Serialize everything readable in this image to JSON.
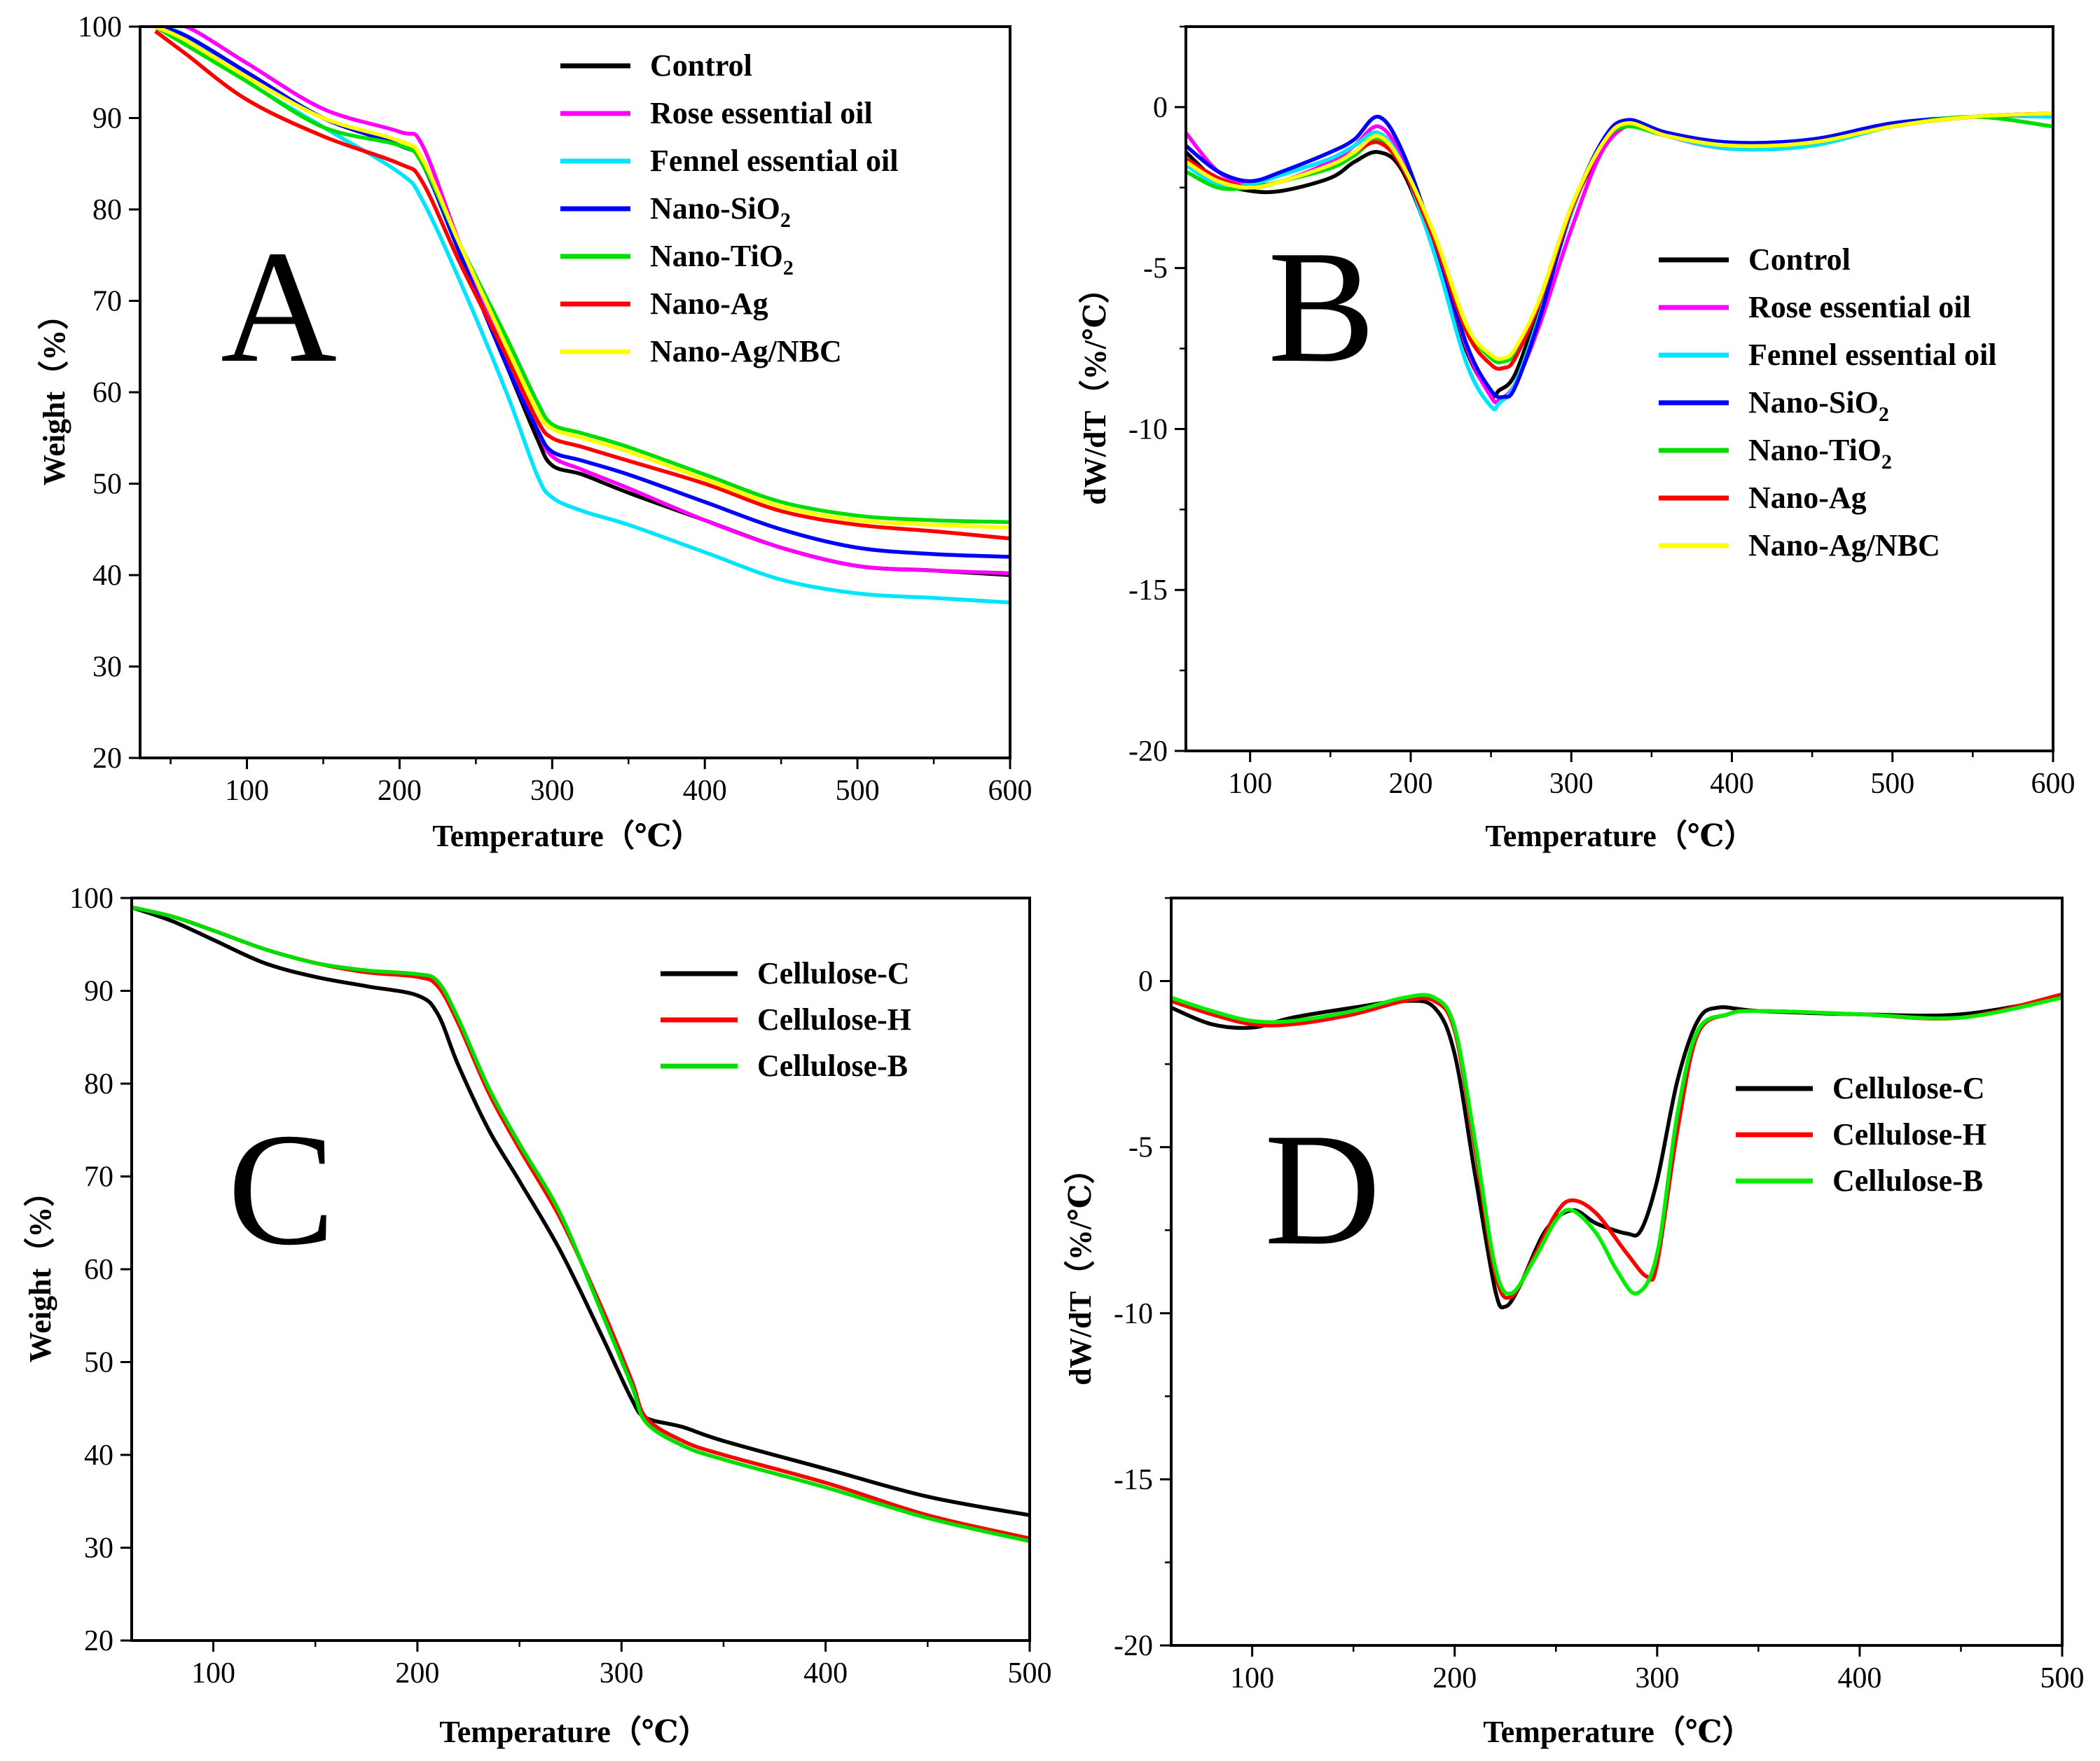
{
  "figure": {
    "panel_letters": [
      "A",
      "B",
      "C",
      "D"
    ]
  },
  "chart_data": [
    {
      "panel": "A",
      "type": "line",
      "xlabel": "Temperature（℃）",
      "ylabel": "Weight（%）",
      "xlim": [
        30,
        600
      ],
      "ylim": [
        20,
        100
      ],
      "xticks": [
        100,
        200,
        300,
        400,
        500,
        600
      ],
      "yticks": [
        20,
        30,
        40,
        50,
        60,
        70,
        80,
        90,
        100
      ],
      "legend": {
        "position": "top-right"
      },
      "series": [
        {
          "name": "Control",
          "color": "#000000",
          "x": [
            40,
            60,
            100,
            150,
            200,
            215,
            240,
            270,
            290,
            300,
            320,
            350,
            400,
            450,
            500,
            550,
            600
          ],
          "y": [
            100,
            99,
            95,
            90,
            87,
            85,
            75,
            63,
            55,
            52,
            51,
            49,
            46,
            43,
            41,
            40.5,
            40
          ]
        },
        {
          "name": "Rose essential oil",
          "color": "#ff00ff",
          "x": [
            40,
            60,
            100,
            150,
            200,
            215,
            240,
            270,
            290,
            300,
            320,
            350,
            400,
            450,
            500,
            550,
            600
          ],
          "y": [
            100,
            100,
            96,
            91,
            88.5,
            87,
            76,
            64,
            56,
            53,
            51.5,
            49.5,
            46,
            43,
            41,
            40.5,
            40.2
          ]
        },
        {
          "name": "Fennel essential oil",
          "color": "#00e5ff",
          "x": [
            40,
            60,
            100,
            150,
            200,
            215,
            240,
            270,
            290,
            300,
            320,
            350,
            400,
            450,
            500,
            550,
            600
          ],
          "y": [
            100,
            99,
            94,
            89,
            84,
            81,
            72,
            60,
            51,
            48.5,
            47,
            45.5,
            42.5,
            39.5,
            38,
            37.5,
            37
          ]
        },
        {
          "name": "Nano-SiO2",
          "label_main": "Nano-SiO",
          "label_sub": "2",
          "color": "#0000ff",
          "x": [
            40,
            60,
            100,
            150,
            200,
            215,
            240,
            270,
            290,
            300,
            320,
            350,
            400,
            450,
            500,
            550,
            600
          ],
          "y": [
            100,
            99,
            95,
            90,
            87,
            85,
            75,
            63,
            56,
            53.5,
            52.5,
            51,
            48,
            45,
            43,
            42.3,
            42
          ]
        },
        {
          "name": "Nano-TiO2",
          "label_main": "Nano-TiO",
          "label_sub": "2",
          "color": "#00dd00",
          "x": [
            40,
            60,
            100,
            150,
            200,
            215,
            240,
            270,
            290,
            300,
            320,
            350,
            400,
            450,
            500,
            550,
            600
          ],
          "y": [
            100,
            98,
            94,
            89,
            87,
            85,
            76,
            66,
            59,
            56.5,
            55.5,
            54,
            51,
            48,
            46.5,
            46,
            45.8
          ]
        },
        {
          "name": "Nano-Ag",
          "color": "#ff0000",
          "x": [
            40,
            60,
            100,
            150,
            200,
            215,
            240,
            270,
            290,
            300,
            320,
            350,
            400,
            450,
            500,
            550,
            600
          ],
          "y": [
            99.5,
            97,
            92,
            88,
            85,
            83,
            74,
            64,
            57,
            55,
            54,
            52.5,
            50,
            47,
            45.5,
            44.8,
            44
          ]
        },
        {
          "name": "Nano-Ag/NBC",
          "color": "#ffff00",
          "x": [
            40,
            60,
            100,
            150,
            200,
            215,
            240,
            270,
            290,
            300,
            320,
            350,
            400,
            450,
            500,
            550,
            600
          ],
          "y": [
            100,
            98.5,
            94.5,
            90,
            87.5,
            85.5,
            76,
            65,
            58,
            56,
            55,
            53.5,
            50.5,
            47.5,
            46,
            45.5,
            45.2
          ]
        }
      ]
    },
    {
      "panel": "B",
      "type": "line",
      "xlabel": "Temperature（℃）",
      "ylabel": "dW/dT（%/℃）",
      "xlim": [
        60,
        600
      ],
      "ylim": [
        -20,
        2.5
      ],
      "xticks": [
        100,
        200,
        300,
        400,
        500,
        600
      ],
      "yticks": [
        -20,
        -15,
        -10,
        -5,
        0
      ],
      "legend": {
        "position": "right"
      },
      "series": [
        {
          "name": "Control",
          "color": "#000000",
          "x": [
            60,
            80,
            100,
            120,
            150,
            165,
            180,
            195,
            215,
            235,
            250,
            255,
            265,
            280,
            300,
            320,
            335,
            360,
            400,
            450,
            500,
            550,
            600
          ],
          "y": [
            -1.4,
            -2.3,
            -2.6,
            -2.6,
            -2.2,
            -1.7,
            -1.4,
            -2.0,
            -4.5,
            -7.6,
            -8.9,
            -8.8,
            -8.3,
            -6.2,
            -3.2,
            -1.2,
            -0.5,
            -0.8,
            -1.2,
            -1.1,
            -0.6,
            -0.3,
            -0.2
          ]
        },
        {
          "name": "Rose essential oil",
          "color": "#ff00ff",
          "x": [
            60,
            80,
            100,
            120,
            150,
            165,
            180,
            195,
            215,
            235,
            250,
            255,
            265,
            280,
            300,
            320,
            340,
            360,
            400,
            450,
            500,
            550,
            600
          ],
          "y": [
            -0.8,
            -2.0,
            -2.4,
            -2.3,
            -1.7,
            -1.2,
            -0.6,
            -1.6,
            -4.2,
            -7.5,
            -9.0,
            -9.1,
            -8.6,
            -6.8,
            -3.8,
            -1.3,
            -0.5,
            -0.9,
            -1.3,
            -1.1,
            -0.6,
            -0.3,
            -0.2
          ]
        },
        {
          "name": "Fennel essential oil",
          "color": "#00e5ff",
          "x": [
            60,
            80,
            100,
            120,
            150,
            165,
            180,
            195,
            215,
            235,
            250,
            255,
            265,
            280,
            300,
            320,
            335,
            360,
            400,
            450,
            500,
            550,
            600
          ],
          "y": [
            -1.8,
            -2.4,
            -2.4,
            -2.1,
            -1.6,
            -1.2,
            -0.8,
            -1.8,
            -4.6,
            -8.0,
            -9.3,
            -9.2,
            -8.6,
            -6.5,
            -3.3,
            -1.0,
            -0.5,
            -0.9,
            -1.3,
            -1.2,
            -0.6,
            -0.3,
            -0.3
          ]
        },
        {
          "name": "Nano-SiO2",
          "label_main": "Nano-SiO",
          "label_sub": "2",
          "color": "#0000ff",
          "x": [
            60,
            80,
            100,
            120,
            150,
            165,
            180,
            195,
            215,
            235,
            250,
            258,
            265,
            280,
            300,
            320,
            335,
            360,
            400,
            450,
            500,
            550,
            600
          ],
          "y": [
            -1.2,
            -2.0,
            -2.3,
            -2.0,
            -1.4,
            -1.0,
            -0.3,
            -1.4,
            -4.2,
            -7.4,
            -8.8,
            -9.0,
            -8.7,
            -6.6,
            -3.2,
            -1.0,
            -0.4,
            -0.8,
            -1.1,
            -1.0,
            -0.5,
            -0.3,
            -0.2
          ]
        },
        {
          "name": "Nano-TiO2",
          "label_main": "Nano-TiO",
          "label_sub": "2",
          "color": "#00dd00",
          "x": [
            60,
            80,
            100,
            120,
            150,
            165,
            180,
            195,
            215,
            235,
            250,
            258,
            265,
            280,
            300,
            320,
            335,
            360,
            400,
            450,
            500,
            550,
            600
          ],
          "y": [
            -2.0,
            -2.5,
            -2.5,
            -2.3,
            -1.9,
            -1.5,
            -1.0,
            -1.8,
            -4.0,
            -6.8,
            -7.8,
            -7.9,
            -7.6,
            -6.0,
            -3.1,
            -1.1,
            -0.6,
            -0.9,
            -1.2,
            -1.1,
            -0.6,
            -0.3,
            -0.6
          ]
        },
        {
          "name": "Nano-Ag",
          "color": "#ff0000",
          "x": [
            60,
            80,
            100,
            120,
            150,
            165,
            180,
            195,
            215,
            235,
            250,
            258,
            265,
            280,
            300,
            320,
            335,
            360,
            400,
            450,
            500,
            550,
            600
          ],
          "y": [
            -1.6,
            -2.2,
            -2.5,
            -2.3,
            -1.8,
            -1.4,
            -1.1,
            -1.9,
            -4.2,
            -7.0,
            -8.0,
            -8.1,
            -7.8,
            -6.1,
            -3.2,
            -1.1,
            -0.5,
            -0.9,
            -1.2,
            -1.1,
            -0.6,
            -0.3,
            -0.2
          ]
        },
        {
          "name": "Nano-Ag/NBC",
          "color": "#ffff00",
          "x": [
            60,
            80,
            100,
            120,
            150,
            165,
            180,
            195,
            215,
            235,
            250,
            258,
            265,
            280,
            300,
            320,
            335,
            360,
            400,
            450,
            500,
            550,
            600
          ],
          "y": [
            -1.7,
            -2.3,
            -2.5,
            -2.3,
            -1.8,
            -1.4,
            -0.9,
            -1.8,
            -4.0,
            -6.8,
            -7.7,
            -7.8,
            -7.5,
            -6.0,
            -3.1,
            -1.1,
            -0.5,
            -0.9,
            -1.2,
            -1.1,
            -0.6,
            -0.3,
            -0.2
          ]
        }
      ]
    },
    {
      "panel": "C",
      "type": "line",
      "xlabel": "Temperature（℃）",
      "ylabel": "Weight（%）",
      "xlim": [
        60,
        500
      ],
      "ylim": [
        20,
        100
      ],
      "xticks": [
        100,
        200,
        300,
        400,
        500
      ],
      "yticks": [
        20,
        30,
        40,
        50,
        60,
        70,
        80,
        90,
        100
      ],
      "legend": {
        "position": "top-right"
      },
      "series": [
        {
          "name": "Cellulose-C",
          "color": "#000000",
          "x": [
            60,
            80,
            100,
            125,
            150,
            175,
            200,
            210,
            220,
            235,
            250,
            270,
            290,
            305,
            312,
            330,
            350,
            400,
            450,
            500
          ],
          "y": [
            99,
            97.5,
            95.5,
            93,
            91.5,
            90.5,
            89.5,
            87.5,
            82,
            75,
            69.5,
            62,
            53,
            46,
            44,
            43,
            41.5,
            38.5,
            35.5,
            33.5
          ]
        },
        {
          "name": "Cellulose-H",
          "color": "#ff0000",
          "x": [
            60,
            80,
            100,
            125,
            150,
            175,
            200,
            210,
            220,
            235,
            250,
            270,
            290,
            305,
            312,
            330,
            350,
            400,
            450,
            500
          ],
          "y": [
            99,
            98,
            96.5,
            94.5,
            93,
            92,
            91.5,
            90.5,
            86.5,
            79,
            73,
            65.5,
            56,
            48,
            44,
            41.5,
            40,
            37,
            33.5,
            31
          ]
        },
        {
          "name": "Cellulose-B",
          "color": "#00dd00",
          "x": [
            60,
            80,
            100,
            125,
            150,
            175,
            200,
            210,
            220,
            235,
            250,
            270,
            290,
            305,
            312,
            330,
            350,
            400,
            450,
            500
          ],
          "y": [
            99,
            98,
            96.5,
            94.5,
            93,
            92.2,
            91.8,
            91,
            87,
            79.5,
            73.5,
            66,
            55.5,
            47.5,
            43.5,
            41,
            39.5,
            36.5,
            33.2,
            30.7
          ]
        }
      ]
    },
    {
      "panel": "D",
      "type": "line",
      "xlabel": "Temperature（℃）",
      "ylabel": "dW/dT（%/℃）",
      "xlim": [
        60,
        500
      ],
      "ylim": [
        -20,
        2.5
      ],
      "xticks": [
        100,
        200,
        300,
        400,
        500
      ],
      "yticks": [
        -20,
        -15,
        -10,
        -5,
        0
      ],
      "legend": {
        "position": "right"
      },
      "series": [
        {
          "name": "Cellulose-C",
          "color": "#000000",
          "x": [
            60,
            80,
            100,
            120,
            150,
            175,
            190,
            200,
            210,
            220,
            225,
            232,
            245,
            258,
            270,
            285,
            292,
            300,
            310,
            320,
            330,
            350,
            400,
            450,
            500
          ],
          "y": [
            -0.8,
            -1.3,
            -1.4,
            -1.1,
            -0.8,
            -0.6,
            -0.8,
            -2.2,
            -5.8,
            -9.3,
            -9.8,
            -9.2,
            -7.5,
            -6.9,
            -7.3,
            -7.6,
            -7.5,
            -6.0,
            -3.0,
            -1.2,
            -0.8,
            -0.9,
            -1.0,
            -1.0,
            -0.5
          ]
        },
        {
          "name": "Cellulose-H",
          "color": "#ff0000",
          "x": [
            60,
            80,
            100,
            120,
            150,
            175,
            190,
            200,
            210,
            220,
            228,
            240,
            250,
            258,
            270,
            285,
            295,
            300,
            310,
            320,
            335,
            350,
            400,
            450,
            500
          ],
          "y": [
            -0.6,
            -1.0,
            -1.3,
            -1.3,
            -1.0,
            -0.6,
            -0.6,
            -1.5,
            -5.0,
            -8.8,
            -9.5,
            -8.2,
            -7.0,
            -6.6,
            -7.0,
            -8.2,
            -8.9,
            -8.5,
            -4.5,
            -1.6,
            -1.0,
            -0.9,
            -1.0,
            -1.1,
            -0.4
          ]
        },
        {
          "name": "Cellulose-B",
          "color": "#00ee00",
          "x": [
            60,
            80,
            100,
            120,
            150,
            175,
            190,
            200,
            210,
            220,
            228,
            240,
            250,
            258,
            270,
            280,
            290,
            300,
            310,
            320,
            335,
            350,
            400,
            450,
            500
          ],
          "y": [
            -0.5,
            -0.9,
            -1.2,
            -1.2,
            -0.9,
            -0.5,
            -0.5,
            -1.4,
            -4.8,
            -8.6,
            -9.4,
            -8.3,
            -7.2,
            -6.9,
            -7.6,
            -8.7,
            -9.4,
            -8.2,
            -4.0,
            -1.5,
            -1.0,
            -0.9,
            -1.0,
            -1.1,
            -0.5
          ]
        }
      ]
    }
  ]
}
